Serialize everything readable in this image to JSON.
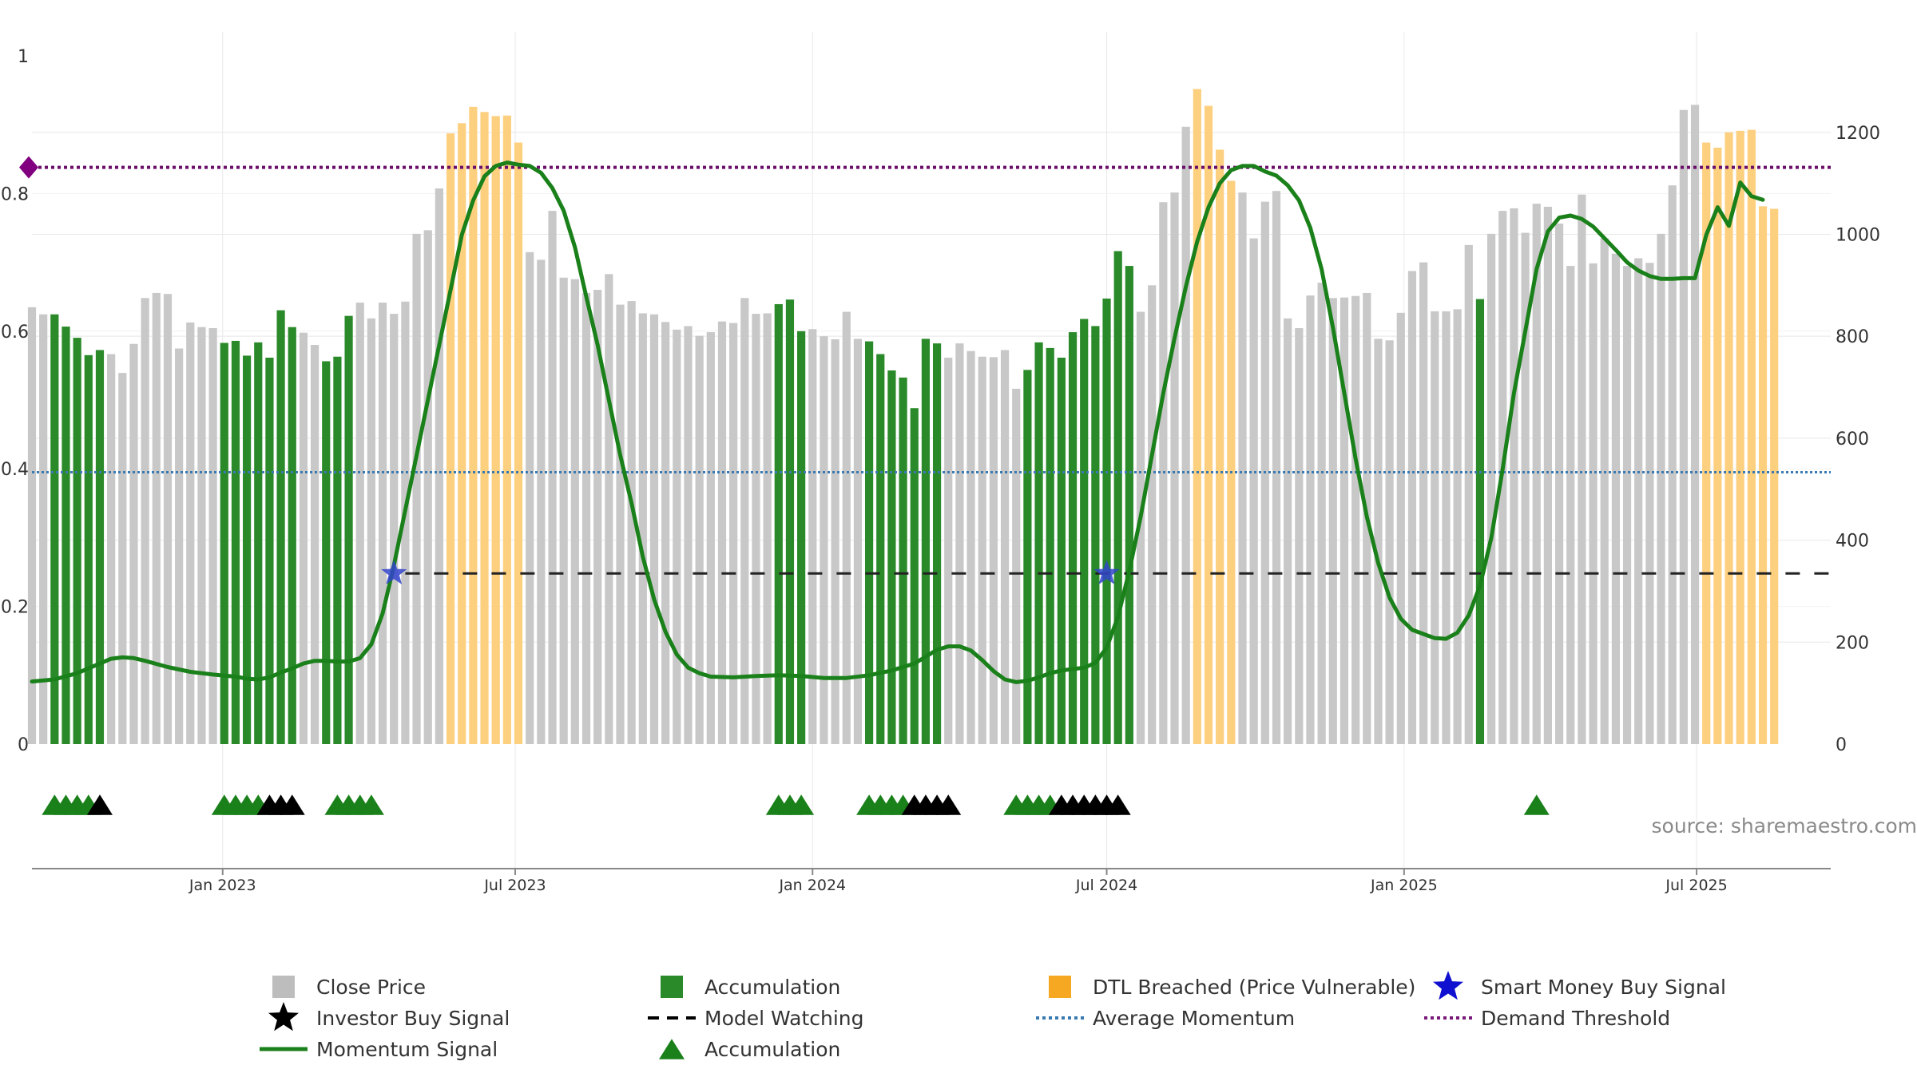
{
  "chart_data": {
    "type": "bar",
    "source": "source: sharemaestro.com",
    "left_axis": {
      "ylim": [
        0,
        1
      ],
      "ticks": [
        0,
        0.2,
        0.4,
        0.6,
        0.8,
        1
      ]
    },
    "right_axis": {
      "ylim": [
        0,
        1350
      ],
      "ticks": [
        0,
        200,
        400,
        600,
        800,
        1000,
        1200
      ]
    },
    "x_axis": {
      "start": "2022-09-05",
      "end": "2025-09-22",
      "ticks": [
        {
          "date": "2023-01-01",
          "label": "Jan 2023"
        },
        {
          "date": "2023-07-01",
          "label": "Jul 2023"
        },
        {
          "date": "2024-01-01",
          "label": "Jan 2024"
        },
        {
          "date": "2024-07-01",
          "label": "Jul 2024"
        },
        {
          "date": "2025-01-01",
          "label": "Jan 2025"
        },
        {
          "date": "2025-07-01",
          "label": "Jul 2025"
        }
      ]
    },
    "bar_start": "2022-09-05",
    "bar_interval_days": 7,
    "close_price": [
      857,
      843,
      843,
      819,
      797,
      763,
      773,
      765,
      728,
      785,
      875,
      885,
      883,
      776,
      827,
      818,
      816,
      787,
      791,
      762,
      788,
      758,
      851,
      818,
      807,
      783,
      751,
      760,
      840,
      866,
      835,
      866,
      844,
      868,
      1001,
      1008,
      1090,
      1198,
      1218,
      1250,
      1240,
      1232,
      1233,
      1180,
      965,
      950,
      1046,
      915,
      912,
      885,
      891,
      922,
      862,
      869,
      845,
      843,
      828,
      813,
      820,
      801,
      808,
      829,
      826,
      875,
      844,
      845,
      863,
      872,
      810,
      814,
      800,
      794,
      848,
      795,
      790,
      765,
      733,
      719,
      659,
      795,
      786,
      758,
      786,
      771,
      760,
      759,
      773,
      697,
      734,
      788,
      777,
      758,
      808,
      834,
      820,
      874,
      967,
      938,
      848,
      900,
      1063,
      1082,
      1211,
      1285,
      1252,
      1166,
      1105,
      1082,
      992,
      1064,
      1085,
      835,
      816,
      880,
      905,
      875,
      876,
      879,
      885,
      795,
      792,
      846,
      928,
      945,
      849,
      849,
      853,
      979,
      873,
      1001,
      1046,
      1051,
      1003,
      1060,
      1054,
      1021,
      938,
      1078,
      943,
      992,
      962,
      938,
      953,
      944,
      1001,
      1096,
      1244,
      1254,
      1180,
      1170,
      1200,
      1203,
      1205,
      1055,
      1050
    ],
    "accumulation_bar_indices": [
      2,
      3,
      4,
      5,
      6,
      17,
      18,
      19,
      20,
      21,
      22,
      23,
      26,
      27,
      28,
      66,
      67,
      68,
      74,
      75,
      76,
      77,
      78,
      79,
      80,
      88,
      89,
      90,
      91,
      92,
      93,
      94,
      95,
      96,
      97,
      128
    ],
    "dtl_breached_bar_indices": [
      37,
      38,
      39,
      40,
      41,
      42,
      43,
      103,
      104,
      105,
      106,
      148,
      149,
      150,
      151,
      152,
      153,
      154
    ],
    "momentum_signal": [
      [
        0,
        0.091
      ],
      [
        2,
        0.094
      ],
      [
        4,
        0.103
      ],
      [
        6,
        0.117
      ],
      [
        7,
        0.124
      ],
      [
        8,
        0.126
      ],
      [
        9,
        0.125
      ],
      [
        10,
        0.121
      ],
      [
        12,
        0.112
      ],
      [
        14,
        0.105
      ],
      [
        16,
        0.101
      ],
      [
        18,
        0.098
      ],
      [
        19,
        0.095
      ],
      [
        20,
        0.094
      ],
      [
        21,
        0.097
      ],
      [
        22,
        0.104
      ],
      [
        23,
        0.11
      ],
      [
        24,
        0.117
      ],
      [
        25,
        0.121
      ],
      [
        26,
        0.121
      ],
      [
        27,
        0.12
      ],
      [
        28,
        0.12
      ],
      [
        29,
        0.125
      ],
      [
        30,
        0.145
      ],
      [
        31,
        0.19
      ],
      [
        32,
        0.26
      ],
      [
        33,
        0.34
      ],
      [
        34,
        0.42
      ],
      [
        35,
        0.5
      ],
      [
        36,
        0.58
      ],
      [
        37,
        0.66
      ],
      [
        38,
        0.74
      ],
      [
        39,
        0.79
      ],
      [
        40,
        0.825
      ],
      [
        41,
        0.84
      ],
      [
        42,
        0.845
      ],
      [
        43,
        0.842
      ],
      [
        44,
        0.84
      ],
      [
        45,
        0.83
      ],
      [
        46,
        0.808
      ],
      [
        47,
        0.775
      ],
      [
        48,
        0.722
      ],
      [
        49,
        0.65
      ],
      [
        50,
        0.58
      ],
      [
        51,
        0.5
      ],
      [
        52,
        0.42
      ],
      [
        53,
        0.35
      ],
      [
        54,
        0.272
      ],
      [
        55,
        0.21
      ],
      [
        56,
        0.163
      ],
      [
        57,
        0.13
      ],
      [
        58,
        0.111
      ],
      [
        59,
        0.103
      ],
      [
        60,
        0.098
      ],
      [
        62,
        0.097
      ],
      [
        64,
        0.099
      ],
      [
        66,
        0.1
      ],
      [
        68,
        0.099
      ],
      [
        70,
        0.096
      ],
      [
        72,
        0.096
      ],
      [
        74,
        0.1
      ],
      [
        76,
        0.107
      ],
      [
        78,
        0.117
      ],
      [
        79,
        0.127
      ],
      [
        80,
        0.137
      ],
      [
        81,
        0.142
      ],
      [
        82,
        0.142
      ],
      [
        83,
        0.136
      ],
      [
        84,
        0.122
      ],
      [
        85,
        0.106
      ],
      [
        86,
        0.094
      ],
      [
        87,
        0.09
      ],
      [
        88,
        0.092
      ],
      [
        89,
        0.097
      ],
      [
        90,
        0.103
      ],
      [
        91,
        0.107
      ],
      [
        92,
        0.109
      ],
      [
        93,
        0.111
      ],
      [
        94,
        0.118
      ],
      [
        95,
        0.14
      ],
      [
        96,
        0.185
      ],
      [
        97,
        0.252
      ],
      [
        98,
        0.33
      ],
      [
        99,
        0.42
      ],
      [
        100,
        0.51
      ],
      [
        101,
        0.59
      ],
      [
        102,
        0.665
      ],
      [
        103,
        0.73
      ],
      [
        104,
        0.78
      ],
      [
        105,
        0.815
      ],
      [
        106,
        0.834
      ],
      [
        107,
        0.84
      ],
      [
        108,
        0.84
      ],
      [
        109,
        0.832
      ],
      [
        110,
        0.826
      ],
      [
        111,
        0.812
      ],
      [
        112,
        0.79
      ],
      [
        113,
        0.75
      ],
      [
        114,
        0.69
      ],
      [
        115,
        0.605
      ],
      [
        116,
        0.51
      ],
      [
        117,
        0.415
      ],
      [
        118,
        0.33
      ],
      [
        119,
        0.263
      ],
      [
        120,
        0.213
      ],
      [
        121,
        0.182
      ],
      [
        122,
        0.166
      ],
      [
        123,
        0.16
      ],
      [
        124,
        0.154
      ],
      [
        125,
        0.153
      ],
      [
        126,
        0.162
      ],
      [
        127,
        0.187
      ],
      [
        128,
        0.23
      ],
      [
        129,
        0.3
      ],
      [
        130,
        0.4
      ],
      [
        131,
        0.51
      ],
      [
        132,
        0.6
      ],
      [
        133,
        0.69
      ],
      [
        134,
        0.745
      ],
      [
        135,
        0.765
      ],
      [
        136,
        0.768
      ],
      [
        137,
        0.763
      ],
      [
        138,
        0.752
      ],
      [
        139,
        0.735
      ],
      [
        140,
        0.718
      ],
      [
        141,
        0.7
      ],
      [
        142,
        0.688
      ],
      [
        143,
        0.68
      ],
      [
        144,
        0.676
      ],
      [
        145,
        0.676
      ],
      [
        146,
        0.677
      ],
      [
        147,
        0.677
      ],
      [
        148,
        0.74
      ],
      [
        149,
        0.78
      ],
      [
        150,
        0.753
      ],
      [
        151,
        0.816
      ],
      [
        152,
        0.796
      ],
      [
        153,
        0.791
      ]
    ],
    "average_momentum": 0.395,
    "demand_threshold": 0.838,
    "model_watching_level": 0.248,
    "model_watching_range": [
      "2023-04-24",
      "2025-09-22"
    ],
    "smart_money_buy_signals": [
      {
        "date": "2023-04-17",
        "value": 0.248
      },
      {
        "date": "2024-07-01",
        "value": 0.248
      }
    ],
    "accumulation_markers": [
      "2022-09-19",
      "2022-09-26",
      "2022-10-03",
      "2022-10-10",
      "2023-01-02",
      "2023-01-09",
      "2023-01-16",
      "2023-01-23",
      "2023-03-13",
      "2023-03-20",
      "2023-03-27",
      "2023-04-03",
      "2023-12-11",
      "2023-12-18",
      "2023-12-25",
      "2024-02-05",
      "2024-02-12",
      "2024-02-19",
      "2024-02-26",
      "2024-05-06",
      "2024-05-13",
      "2024-05-20",
      "2024-05-27",
      "2025-03-24"
    ],
    "investor_buy_markers": [
      "2022-10-17",
      "2023-01-30",
      "2023-02-06",
      "2023-02-13",
      "2024-03-04",
      "2024-03-11",
      "2024-03-18",
      "2024-03-25",
      "2024-06-03",
      "2024-06-10",
      "2024-06-17",
      "2024-06-24",
      "2024-07-01",
      "2024-07-08"
    ],
    "legend": [
      {
        "label": "Close Price",
        "symbol": "square",
        "color": "#bdbdbd"
      },
      {
        "label": "Accumulation",
        "symbol": "square",
        "color": "#2a8a2a"
      },
      {
        "label": "DTL Breached (Price Vulnerable)",
        "symbol": "square",
        "color": "#f7a823"
      },
      {
        "label": "Smart Money Buy Signal",
        "symbol": "star",
        "color": "#1010d0"
      },
      {
        "label": "Investor Buy Signal",
        "symbol": "star",
        "color": "#000000"
      },
      {
        "label": "Model Watching",
        "symbol": "dash",
        "color": "#000000"
      },
      {
        "label": "Average Momentum",
        "symbol": "dotted",
        "color": "#3a7ab0"
      },
      {
        "label": "Demand Threshold",
        "symbol": "dotted",
        "color": "#7a1a7a"
      },
      {
        "label": "Momentum Signal",
        "symbol": "line",
        "color": "#1a801a"
      },
      {
        "label": "Accumulation",
        "symbol": "triangle",
        "color": "#1a801a"
      }
    ],
    "colors": {
      "close_bar": "#c8c8c8",
      "accumulation_bar": "#2a8a2a",
      "dtl_bar": "#fdd080",
      "momentum": "#1a801a",
      "average_momentum": "#3a7ab0",
      "demand_threshold": "#6b0f6b",
      "threshold_marker": "#800080",
      "model_watching": "#222222",
      "smart_money": "#3344cc",
      "investor_marker": "#000000",
      "accumulation_marker": "#1a801a",
      "grid": "#e8e8e8",
      "axis": "#888888"
    },
    "grid": true,
    "legend_position": "bottom"
  }
}
